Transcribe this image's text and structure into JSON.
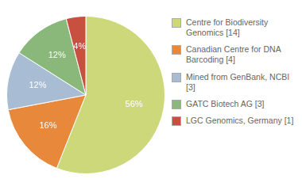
{
  "chart_data": {
    "type": "pie",
    "categories": [
      "Centre for Biodiversity\nGenomics [14]",
      "Canadian Centre for DNA\nBarcoding [4]",
      "Mined from GenBank, NCBI [3]",
      "GATC Biotech AG [3]",
      "LGC Genomics, Germany [1]"
    ],
    "values": [
      56,
      16,
      12,
      12,
      4
    ],
    "value_labels": [
      "56%",
      "16%",
      "12%",
      "12%",
      "4%"
    ],
    "colors": [
      "#cdd87a",
      "#e8883a",
      "#a8bdd4",
      "#8ab87a",
      "#c85040"
    ],
    "data_labels": true,
    "legend": "right"
  }
}
